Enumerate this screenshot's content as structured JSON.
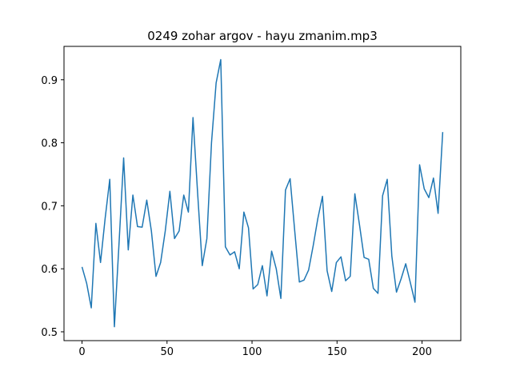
{
  "chart_data": {
    "type": "line",
    "title": "0249 zohar argov - hayu zmanim.mp3",
    "x": [
      0,
      2.72,
      5.44,
      8.16,
      10.88,
      13.6,
      16.32,
      19.04,
      21.76,
      24.48,
      27.2,
      29.92,
      32.64,
      35.36,
      38.08,
      40.8,
      43.52,
      46.24,
      48.96,
      51.68,
      54.4,
      57.12,
      59.84,
      62.56,
      65.28,
      68,
      70.72,
      73.44,
      76.16,
      78.88,
      81.6,
      84.32,
      87.04,
      89.76,
      92.48,
      95.2,
      97.92,
      100.64,
      103.36,
      106.08,
      108.8,
      111.52,
      114.24,
      116.96,
      119.68,
      122.4,
      125.12,
      127.84,
      130.56,
      133.28,
      136,
      138.72,
      141.44,
      144.16,
      146.88,
      149.6,
      152.32,
      155.04,
      157.76,
      160.48,
      163.2,
      165.92,
      168.64,
      171.36,
      174.08,
      176.8,
      179.52,
      182.24,
      184.96,
      187.68,
      190.4,
      193.12,
      195.84,
      198.56,
      201.28,
      204,
      206.72,
      209.44,
      212.16
    ],
    "series": [
      {
        "color": "#1f77b4",
        "values": [
          0.603,
          0.577,
          0.538,
          0.672,
          0.61,
          0.68,
          0.742,
          0.508,
          0.64,
          0.776,
          0.63,
          0.717,
          0.667,
          0.666,
          0.709,
          0.66,
          0.588,
          0.61,
          0.66,
          0.723,
          0.648,
          0.66,
          0.717,
          0.69,
          0.84,
          0.72,
          0.605,
          0.648,
          0.8,
          0.895,
          0.932,
          0.635,
          0.622,
          0.627,
          0.6,
          0.69,
          0.665,
          0.568,
          0.575,
          0.605,
          0.557,
          0.628,
          0.6,
          0.553,
          0.725,
          0.743,
          0.66,
          0.579,
          0.582,
          0.598,
          0.637,
          0.68,
          0.715,
          0.597,
          0.564,
          0.61,
          0.619,
          0.581,
          0.588,
          0.719,
          0.67,
          0.618,
          0.615,
          0.569,
          0.561,
          0.716,
          0.742,
          0.62,
          0.563,
          0.584,
          0.608,
          0.578,
          0.547,
          0.765,
          0.727,
          0.713,
          0.744,
          0.688,
          0.817
        ]
      }
    ],
    "xlim": [
      -10.6,
      222.8
    ],
    "xticks": [
      0,
      50,
      100,
      150,
      200
    ],
    "ylim": [
      0.486,
      0.953
    ],
    "yticks": [
      0.5,
      0.6,
      0.7,
      0.8,
      0.9
    ]
  }
}
